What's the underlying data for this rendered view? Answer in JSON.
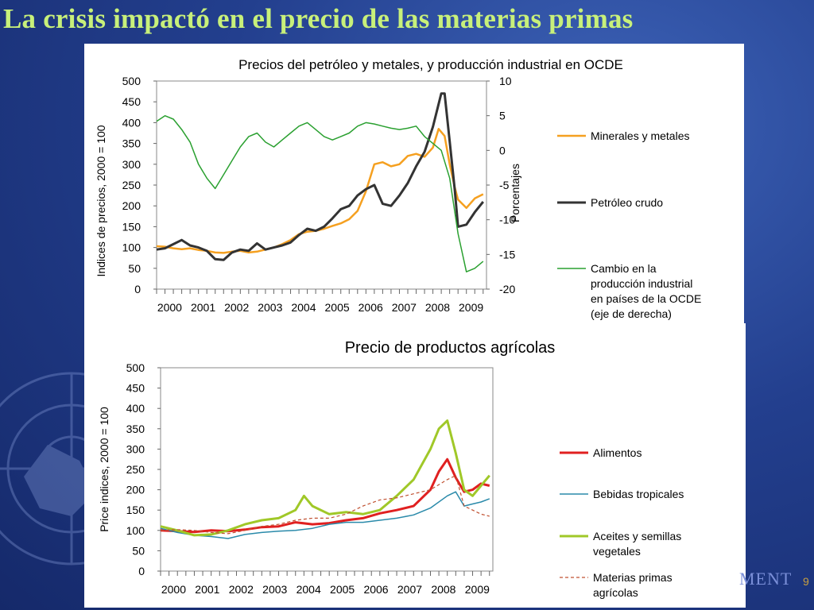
{
  "slide": {
    "title": "La crisis impactó en el precio de las materias primas",
    "footer_text": "MENT",
    "page_number": "9",
    "title_color": "#c8f07a"
  },
  "chart_data": [
    {
      "type": "line",
      "title": "Precios del petróleo y metales,  y producción industrial  en OCDE",
      "ylabel": "Indices de precios, 2000 = 100",
      "y2label": "Porcentajes",
      "ylim": [
        0,
        500
      ],
      "y2lim": [
        -20,
        10
      ],
      "yticks": [
        "0",
        "50",
        "100",
        "150",
        "200",
        "250",
        "300",
        "350",
        "400",
        "450",
        "500"
      ],
      "y2ticks": [
        "-20",
        "-15",
        "-10",
        "-5",
        "0",
        "5",
        "10"
      ],
      "xlim": [
        2000,
        2009.85
      ],
      "xticks": [
        "2000",
        "2001",
        "2002",
        "2003",
        "2004",
        "2005",
        "2006",
        "2007",
        "2008",
        "2009"
      ],
      "legend_position": "right",
      "series": [
        {
          "name": "Minerales y metales",
          "color": "#f5a020",
          "width": 2.5,
          "axis": "left",
          "dash": "",
          "points": [
            [
              2000,
              103
            ],
            [
              2000.25,
              102
            ],
            [
              2000.5,
              98
            ],
            [
              2000.75,
              96
            ],
            [
              2001,
              98
            ],
            [
              2001.25,
              94
            ],
            [
              2001.5,
              92
            ],
            [
              2001.75,
              88
            ],
            [
              2002,
              87
            ],
            [
              2002.25,
              90
            ],
            [
              2002.5,
              92
            ],
            [
              2002.75,
              88
            ],
            [
              2003,
              90
            ],
            [
              2003.25,
              95
            ],
            [
              2003.5,
              100
            ],
            [
              2003.75,
              108
            ],
            [
              2004,
              118
            ],
            [
              2004.25,
              132
            ],
            [
              2004.5,
              138
            ],
            [
              2004.75,
              140
            ],
            [
              2005,
              145
            ],
            [
              2005.25,
              152
            ],
            [
              2005.5,
              158
            ],
            [
              2005.75,
              168
            ],
            [
              2006,
              188
            ],
            [
              2006.25,
              235
            ],
            [
              2006.5,
              300
            ],
            [
              2006.75,
              305
            ],
            [
              2007,
              295
            ],
            [
              2007.25,
              300
            ],
            [
              2007.5,
              320
            ],
            [
              2007.75,
              325
            ],
            [
              2008,
              318
            ],
            [
              2008.25,
              340
            ],
            [
              2008.42,
              385
            ],
            [
              2008.6,
              368
            ],
            [
              2008.75,
              300
            ],
            [
              2008.9,
              245
            ],
            [
              2009,
              215
            ],
            [
              2009.25,
              195
            ],
            [
              2009.5,
              218
            ],
            [
              2009.75,
              228
            ]
          ]
        },
        {
          "name": "Petróleo crudo",
          "color": "#333333",
          "width": 3,
          "axis": "left",
          "dash": "",
          "points": [
            [
              2000,
              95
            ],
            [
              2000.25,
              98
            ],
            [
              2000.5,
              108
            ],
            [
              2000.75,
              118
            ],
            [
              2001,
              105
            ],
            [
              2001.25,
              100
            ],
            [
              2001.5,
              92
            ],
            [
              2001.75,
              72
            ],
            [
              2002,
              70
            ],
            [
              2002.25,
              88
            ],
            [
              2002.5,
              95
            ],
            [
              2002.75,
              92
            ],
            [
              2003,
              110
            ],
            [
              2003.25,
              95
            ],
            [
              2003.5,
              100
            ],
            [
              2003.75,
              105
            ],
            [
              2004,
              112
            ],
            [
              2004.25,
              130
            ],
            [
              2004.5,
              145
            ],
            [
              2004.75,
              140
            ],
            [
              2005,
              150
            ],
            [
              2005.25,
              170
            ],
            [
              2005.5,
              192
            ],
            [
              2005.75,
              200
            ],
            [
              2006,
              225
            ],
            [
              2006.25,
              240
            ],
            [
              2006.5,
              250
            ],
            [
              2006.75,
              205
            ],
            [
              2007,
              200
            ],
            [
              2007.25,
              225
            ],
            [
              2007.5,
              255
            ],
            [
              2007.75,
              295
            ],
            [
              2008,
              330
            ],
            [
              2008.25,
              390
            ],
            [
              2008.5,
              470
            ],
            [
              2008.6,
              470
            ],
            [
              2008.75,
              355
            ],
            [
              2008.9,
              240
            ],
            [
              2009,
              150
            ],
            [
              2009.25,
              155
            ],
            [
              2009.5,
              185
            ],
            [
              2009.75,
              210
            ]
          ]
        },
        {
          "name": "Cambio en la producción industrial en países de la OCDE (eje de derecha)",
          "color": "#2aa030",
          "width": 1.5,
          "axis": "right",
          "dash": "",
          "points": [
            [
              2000,
              4.2
            ],
            [
              2000.25,
              5
            ],
            [
              2000.5,
              4.5
            ],
            [
              2000.75,
              3
            ],
            [
              2001,
              1.2
            ],
            [
              2001.25,
              -2
            ],
            [
              2001.5,
              -4
            ],
            [
              2001.75,
              -5.5
            ],
            [
              2002,
              -3.5
            ],
            [
              2002.25,
              -1.5
            ],
            [
              2002.5,
              0.5
            ],
            [
              2002.75,
              2
            ],
            [
              2003,
              2.5
            ],
            [
              2003.25,
              1.2
            ],
            [
              2003.5,
              0.5
            ],
            [
              2003.75,
              1.5
            ],
            [
              2004,
              2.5
            ],
            [
              2004.25,
              3.5
            ],
            [
              2004.5,
              4
            ],
            [
              2004.75,
              3
            ],
            [
              2005,
              2
            ],
            [
              2005.25,
              1.5
            ],
            [
              2005.5,
              2
            ],
            [
              2005.75,
              2.5
            ],
            [
              2006,
              3.5
            ],
            [
              2006.25,
              4
            ],
            [
              2006.5,
              3.8
            ],
            [
              2006.75,
              3.5
            ],
            [
              2007,
              3.2
            ],
            [
              2007.25,
              3
            ],
            [
              2007.5,
              3.2
            ],
            [
              2007.75,
              3.5
            ],
            [
              2008,
              2
            ],
            [
              2008.25,
              1
            ],
            [
              2008.5,
              0
            ],
            [
              2008.75,
              -4
            ],
            [
              2009,
              -12
            ],
            [
              2009.25,
              -17.5
            ],
            [
              2009.5,
              -17
            ],
            [
              2009.75,
              -16
            ]
          ]
        }
      ]
    },
    {
      "type": "line",
      "title": "Precio de productos agrícolas",
      "ylabel": "Price indices, 2000 = 100",
      "ylim": [
        0,
        500
      ],
      "yticks": [
        "0",
        "50",
        "100",
        "150",
        "200",
        "250",
        "300",
        "350",
        "400",
        "450",
        "500"
      ],
      "xlim": [
        2000,
        2009.85
      ],
      "xticks": [
        "2000",
        "2001",
        "2002",
        "2003",
        "2004",
        "2005",
        "2006",
        "2007",
        "2008",
        "2009"
      ],
      "legend_position": "right",
      "series": [
        {
          "name": "Alimentos",
          "color": "#e02020",
          "width": 3,
          "dash": "",
          "points": [
            [
              2000,
              100
            ],
            [
              2000.5,
              98
            ],
            [
              2001,
              96
            ],
            [
              2001.5,
              100
            ],
            [
              2002,
              98
            ],
            [
              2002.5,
              102
            ],
            [
              2003,
              108
            ],
            [
              2003.5,
              110
            ],
            [
              2004,
              120
            ],
            [
              2004.5,
              115
            ],
            [
              2005,
              118
            ],
            [
              2005.5,
              125
            ],
            [
              2006,
              130
            ],
            [
              2006.5,
              142
            ],
            [
              2007,
              150
            ],
            [
              2007.5,
              160
            ],
            [
              2008,
              200
            ],
            [
              2008.25,
              245
            ],
            [
              2008.5,
              275
            ],
            [
              2008.75,
              230
            ],
            [
              2009,
              195
            ],
            [
              2009.25,
              200
            ],
            [
              2009.5,
              215
            ],
            [
              2009.75,
              210
            ]
          ]
        },
        {
          "name": "Bebidas tropicales",
          "color": "#2a8aaa",
          "width": 1.5,
          "dash": "",
          "points": [
            [
              2000,
              105
            ],
            [
              2000.5,
              95
            ],
            [
              2001,
              88
            ],
            [
              2001.5,
              85
            ],
            [
              2002,
              80
            ],
            [
              2002.5,
              90
            ],
            [
              2003,
              95
            ],
            [
              2003.5,
              98
            ],
            [
              2004,
              100
            ],
            [
              2004.5,
              105
            ],
            [
              2005,
              115
            ],
            [
              2005.5,
              120
            ],
            [
              2006,
              120
            ],
            [
              2006.5,
              125
            ],
            [
              2007,
              130
            ],
            [
              2007.5,
              138
            ],
            [
              2008,
              155
            ],
            [
              2008.5,
              185
            ],
            [
              2008.75,
              195
            ],
            [
              2009,
              160
            ],
            [
              2009.25,
              165
            ],
            [
              2009.5,
              170
            ],
            [
              2009.75,
              178
            ]
          ]
        },
        {
          "name": "Aceites y semillas vegetales",
          "color": "#a0c828",
          "width": 3,
          "dash": "",
          "points": [
            [
              2000,
              110
            ],
            [
              2000.5,
              100
            ],
            [
              2001,
              88
            ],
            [
              2001.5,
              90
            ],
            [
              2002,
              100
            ],
            [
              2002.5,
              115
            ],
            [
              2003,
              125
            ],
            [
              2003.5,
              130
            ],
            [
              2004,
              150
            ],
            [
              2004.25,
              185
            ],
            [
              2004.5,
              160
            ],
            [
              2005,
              140
            ],
            [
              2005.5,
              145
            ],
            [
              2006,
              140
            ],
            [
              2006.5,
              150
            ],
            [
              2007,
              185
            ],
            [
              2007.5,
              225
            ],
            [
              2008,
              300
            ],
            [
              2008.25,
              350
            ],
            [
              2008.5,
              370
            ],
            [
              2008.75,
              290
            ],
            [
              2009,
              200
            ],
            [
              2009.25,
              185
            ],
            [
              2009.5,
              210
            ],
            [
              2009.75,
              235
            ]
          ]
        },
        {
          "name": "Materias primas agrícolas",
          "color": "#c05030",
          "width": 1.2,
          "dash": "4,3",
          "points": [
            [
              2000,
              100
            ],
            [
              2000.5,
              102
            ],
            [
              2001,
              100
            ],
            [
              2001.5,
              95
            ],
            [
              2002,
              92
            ],
            [
              2002.5,
              100
            ],
            [
              2003,
              110
            ],
            [
              2003.5,
              115
            ],
            [
              2004,
              125
            ],
            [
              2004.5,
              130
            ],
            [
              2005,
              130
            ],
            [
              2005.5,
              140
            ],
            [
              2006,
              160
            ],
            [
              2006.5,
              175
            ],
            [
              2007,
              180
            ],
            [
              2007.5,
              190
            ],
            [
              2008,
              200
            ],
            [
              2008.5,
              225
            ],
            [
              2008.75,
              235
            ],
            [
              2009,
              160
            ],
            [
              2009.25,
              150
            ],
            [
              2009.5,
              140
            ],
            [
              2009.75,
              135
            ]
          ]
        }
      ]
    }
  ]
}
